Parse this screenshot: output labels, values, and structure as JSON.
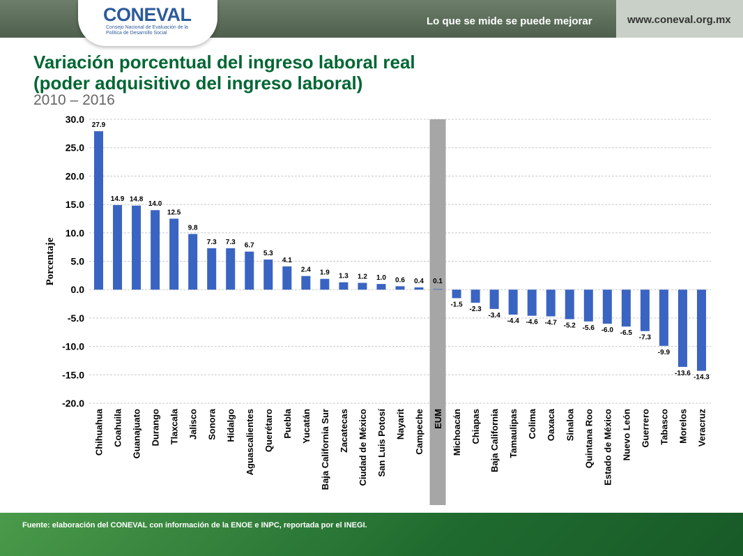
{
  "header": {
    "logo": "CONEVAL",
    "logo_sub": "Consejo Nacional de Evaluación de la Política de Desarrollo Social",
    "tagline": "Lo que se mide se puede mejorar",
    "url": "www.coneval.org.mx"
  },
  "title_line1": "Variación porcentual del ingreso laboral real",
  "title_line2": "(poder adquisitivo del ingreso laboral)",
  "subtitle": "2010 – 2016",
  "footer": {
    "source": "Fuente: elaboración del CONEVAL con información de la ENOE e INPC, reportada por el INEGI."
  },
  "colors": {
    "bar": "#3a64c2",
    "highlight_band": "#a6a6a6",
    "title": "#006633"
  },
  "chart_data": {
    "type": "bar",
    "ylabel": "Porcentaje",
    "ylim": [
      -20,
      30
    ],
    "yticks": [
      "30.0",
      "25.0",
      "20.0",
      "15.0",
      "10.0",
      "5.0",
      "0.0",
      "-5.0",
      "-10.0",
      "-15.0",
      "-20.0"
    ],
    "grid": true,
    "highlight_category": "EUM",
    "categories": [
      "Chihuahua",
      "Coahuila",
      "Guanajuato",
      "Durango",
      "Tlaxcala",
      "Jalisco",
      "Sonora",
      "Hidalgo",
      "Aguascalientes",
      "Querétaro",
      "Puebla",
      "Yucatán",
      "Baja California Sur",
      "Zacatecas",
      "Ciudad de México",
      "San Luis Potosí",
      "Nayarit",
      "Campeche",
      "EUM",
      "Michoacán",
      "Chiapas",
      "Baja California",
      "Tamaulipas",
      "Colima",
      "Oaxaca",
      "Sinaloa",
      "Quintana Roo",
      "Estado de México",
      "Nuevo León",
      "Guerrero",
      "Tabasco",
      "Morelos",
      "Veracruz"
    ],
    "values": [
      27.9,
      14.9,
      14.8,
      14.0,
      12.5,
      9.8,
      7.3,
      7.3,
      6.7,
      5.3,
      4.1,
      2.4,
      1.9,
      1.3,
      1.2,
      1.0,
      0.6,
      0.4,
      0.1,
      -1.5,
      -2.3,
      -3.4,
      -4.4,
      -4.6,
      -4.7,
      -5.2,
      -5.6,
      -6.0,
      -6.5,
      -7.3,
      -9.9,
      -13.6,
      -14.3
    ],
    "labels": [
      "27.9",
      "14.9",
      "14.8",
      "14.0",
      "12.5",
      "9.8",
      "7.3",
      "7.3",
      "6.7",
      "5.3",
      "4.1",
      "2.4",
      "1.9",
      "1.3",
      "1.2",
      "1.0",
      "0.6",
      "0.4",
      "0.1",
      "-1.5",
      "-2.3",
      "-3.4",
      "-4.4",
      "-4.6",
      "-4.7",
      "-5.2",
      "-5.6",
      "-6.0",
      "-6.5",
      "-7.3",
      "-9.9",
      "-13.6",
      "-14.3"
    ]
  }
}
